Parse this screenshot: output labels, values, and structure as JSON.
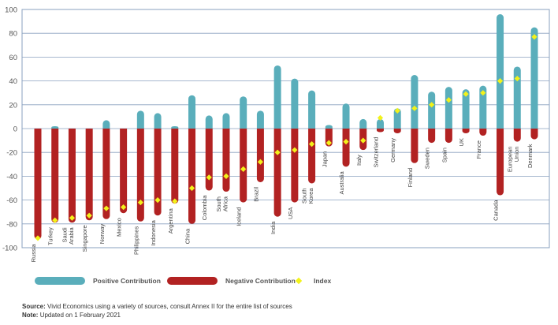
{
  "chart_data": {
    "type": "bar",
    "categories": [
      "Russia",
      "Turkey",
      "Saudi Arabia",
      "Singapore",
      "Norway",
      "Mexico",
      "Philippines",
      "Indonesia",
      "Argentina",
      "China",
      "Colombia",
      "South Africa",
      "Iceland",
      "Brazil",
      "India",
      "USA",
      "South Korea",
      "Japan",
      "Australia",
      "Italy",
      "Switzerland",
      "Germany",
      "Finland",
      "Sweden",
      "Spain",
      "UK",
      "France",
      "Canada",
      "European Union",
      "Denmark"
    ],
    "category_lines": [
      [
        "Russia"
      ],
      [
        "Turkey"
      ],
      [
        "Saudi",
        "Arabia"
      ],
      [
        "Singapore"
      ],
      [
        "Norway"
      ],
      [
        "Mexico"
      ],
      [
        "Philippines"
      ],
      [
        "Indonesia"
      ],
      [
        "Argentina"
      ],
      [
        "China"
      ],
      [
        "Colombia"
      ],
      [
        "South",
        "Africa"
      ],
      [
        "Iceland"
      ],
      [
        "Brazil"
      ],
      [
        "India"
      ],
      [
        "USA"
      ],
      [
        "South",
        "Korea"
      ],
      [
        "Japan"
      ],
      [
        "Australia"
      ],
      [
        "Italy"
      ],
      [
        "Switzerland"
      ],
      [
        "Germany"
      ],
      [
        "Finland"
      ],
      [
        "Sweden"
      ],
      [
        "Spain"
      ],
      [
        "UK"
      ],
      [
        "France"
      ],
      [
        "Canada"
      ],
      [
        "European",
        "Union"
      ],
      [
        "Denmark"
      ]
    ],
    "series": [
      {
        "name": "Positive Contribution",
        "color": "#5aaebb",
        "values": [
          0,
          2,
          0,
          0,
          7,
          0,
          15,
          13,
          2,
          28,
          11,
          13,
          27,
          15,
          53,
          42,
          32,
          3,
          21,
          8,
          8,
          17,
          45,
          31,
          35,
          33,
          36,
          96,
          52,
          85
        ]
      },
      {
        "name": "Negative Contribution",
        "color": "#b22222",
        "values": [
          -93,
          -79,
          -79,
          -77,
          -76,
          -71,
          -78,
          -73,
          -63,
          -80,
          -52,
          -53,
          -62,
          -45,
          -74,
          -62,
          -46,
          -15,
          -32,
          -18,
          -3,
          -4,
          -29,
          -12,
          -12,
          -4,
          -6,
          -56,
          -11,
          -9
        ]
      },
      {
        "name": "Index",
        "color": "#f2f21a",
        "values": [
          -92,
          -77,
          -75,
          -73,
          -67,
          -66,
          -62,
          -60,
          -61,
          -50,
          -41,
          -40,
          -34,
          -28,
          -20,
          -18,
          -13,
          -12,
          -11,
          -10,
          9,
          15,
          17,
          20,
          24,
          29,
          30,
          40,
          42,
          77
        ]
      }
    ],
    "ylim": [
      -100,
      100
    ],
    "yticks": [
      -100,
      -80,
      -60,
      -40,
      -20,
      0,
      20,
      40,
      60,
      80,
      100
    ],
    "grid": true,
    "legend": {
      "position": "bottom",
      "items": [
        {
          "label": "Positive Contribution",
          "color": "#5aaebb",
          "marker": "pill"
        },
        {
          "label": "Negative Contribution",
          "color": "#b22222",
          "marker": "pill"
        },
        {
          "label": "Index",
          "color": "#f2f21a",
          "marker": "diamond"
        }
      ]
    }
  },
  "footer": {
    "source_label": "Source:",
    "source_text": "Vivid Economics using a variety of sources, consult Annex II for the entire list of sources",
    "note_label": "Note:",
    "note_text": "Updated on 1 February 2021"
  }
}
